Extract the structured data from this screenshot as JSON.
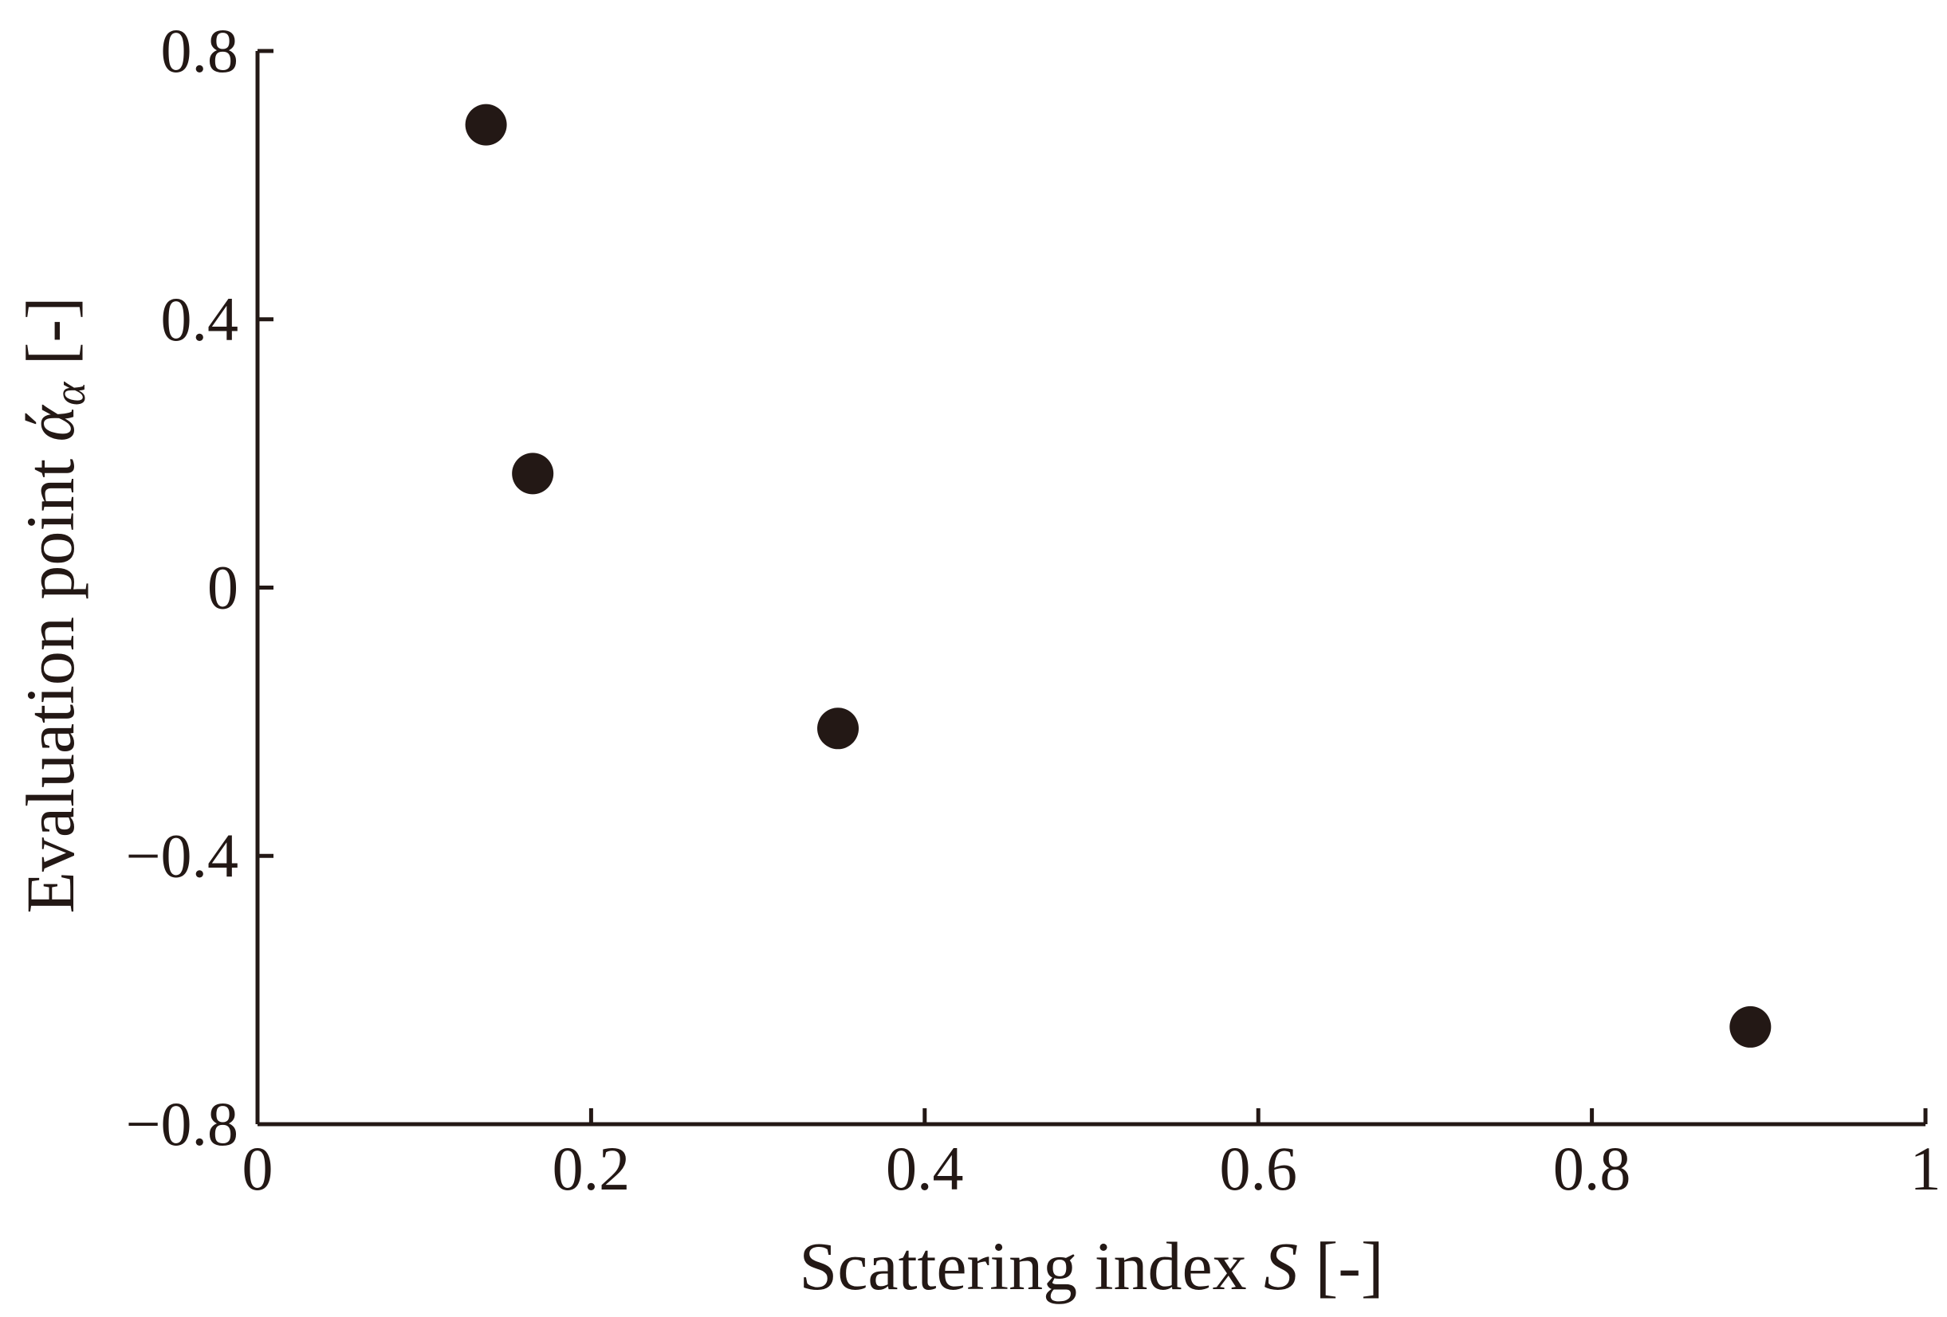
{
  "chart_data": {
    "type": "scatter",
    "title": "",
    "xlabel": {
      "prefix": "Scattering index ",
      "symbol": "S",
      "suffix": " [-]"
    },
    "ylabel": {
      "prefix": "Evaluation point ",
      "symbol": "ά",
      "subscript": "α",
      "suffix": " [-]"
    },
    "xlim": [
      0,
      1
    ],
    "ylim": [
      -0.8,
      0.8
    ],
    "x_ticks": [
      {
        "value": 0,
        "label": "0"
      },
      {
        "value": 0.2,
        "label": "0.2"
      },
      {
        "value": 0.4,
        "label": "0.4"
      },
      {
        "value": 0.6,
        "label": "0.6"
      },
      {
        "value": 0.8,
        "label": "0.8"
      },
      {
        "value": 1,
        "label": "1"
      }
    ],
    "y_ticks": [
      {
        "value": -0.8,
        "label": "−0.8"
      },
      {
        "value": -0.4,
        "label": "−0.4"
      },
      {
        "value": 0,
        "label": "0"
      },
      {
        "value": 0.4,
        "label": "0.4"
      },
      {
        "value": 0.8,
        "label": "0.8"
      }
    ],
    "grid": false,
    "legend": "none",
    "marker_color": "#231815",
    "series": [
      {
        "points": [
          {
            "x": 0.137,
            "y": 0.69
          },
          {
            "x": 0.165,
            "y": 0.17
          },
          {
            "x": 0.348,
            "y": -0.21
          },
          {
            "x": 0.895,
            "y": -0.655
          }
        ]
      }
    ]
  }
}
